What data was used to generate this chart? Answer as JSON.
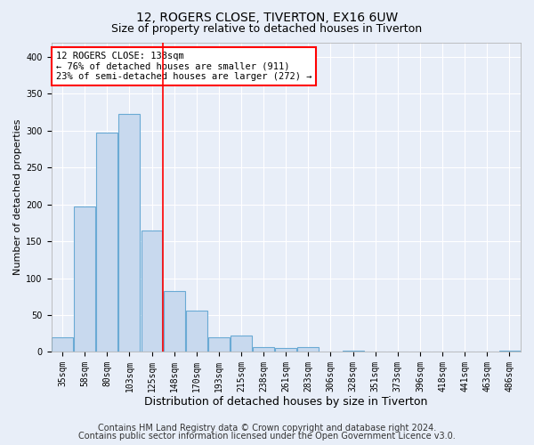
{
  "title1": "12, ROGERS CLOSE, TIVERTON, EX16 6UW",
  "title2": "Size of property relative to detached houses in Tiverton",
  "xlabel": "Distribution of detached houses by size in Tiverton",
  "ylabel": "Number of detached properties",
  "categories": [
    "35sqm",
    "58sqm",
    "80sqm",
    "103sqm",
    "125sqm",
    "148sqm",
    "170sqm",
    "193sqm",
    "215sqm",
    "238sqm",
    "261sqm",
    "283sqm",
    "306sqm",
    "328sqm",
    "351sqm",
    "373sqm",
    "396sqm",
    "418sqm",
    "441sqm",
    "463sqm",
    "486sqm"
  ],
  "values": [
    20,
    197,
    298,
    323,
    165,
    83,
    56,
    20,
    22,
    6,
    5,
    6,
    1,
    2,
    1,
    1,
    1,
    1,
    1,
    1,
    2
  ],
  "bar_color": "#c8d9ee",
  "bar_edge_color": "#6aaad4",
  "annotation_text": "12 ROGERS CLOSE: 138sqm\n← 76% of detached houses are smaller (911)\n23% of semi-detached houses are larger (272) →",
  "annotation_box_color": "white",
  "annotation_box_edge_color": "red",
  "vline_color": "red",
  "ylim": [
    0,
    420
  ],
  "yticks": [
    0,
    50,
    100,
    150,
    200,
    250,
    300,
    350,
    400
  ],
  "footer1": "Contains HM Land Registry data © Crown copyright and database right 2024.",
  "footer2": "Contains public sector information licensed under the Open Government Licence v3.0.",
  "background_color": "#e8eef8",
  "plot_bg_color": "#e8eef8",
  "grid_color": "white",
  "title1_fontsize": 10,
  "title2_fontsize": 9,
  "xlabel_fontsize": 9,
  "ylabel_fontsize": 8,
  "tick_fontsize": 7,
  "annotation_fontsize": 7.5,
  "footer_fontsize": 7
}
